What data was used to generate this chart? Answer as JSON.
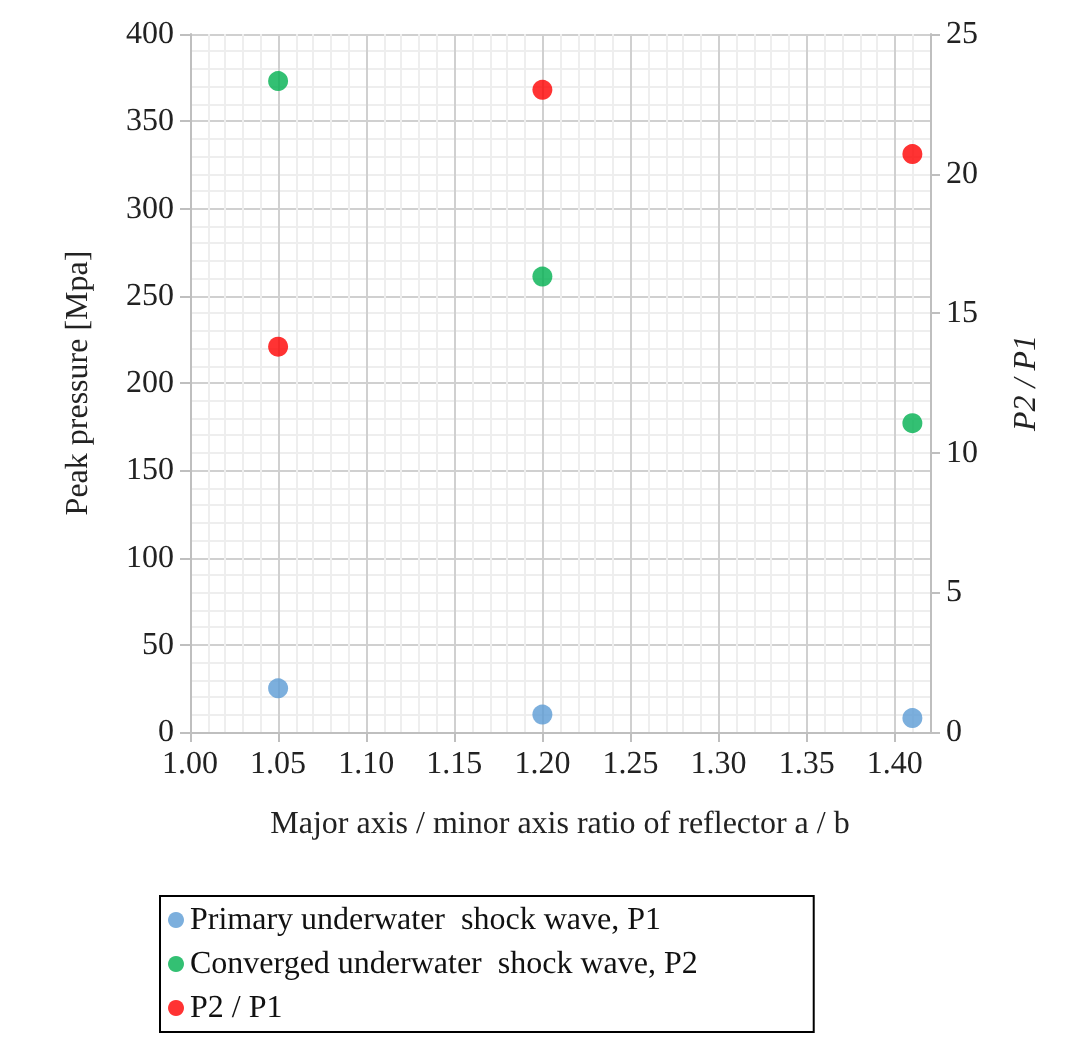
{
  "chart_data": {
    "type": "scatter",
    "xlabel": "Major axis / minor axis ratio of reflector a / b",
    "ylabel": "Peak pressure [Mpa]",
    "y2label": "P2 / P1",
    "x": [
      1.05,
      1.2,
      1.41
    ],
    "series": [
      {
        "name": "Primary underwater  shock wave, P1",
        "color": "#5b9bd5",
        "values": [
          25,
          10,
          8
        ]
      },
      {
        "name": "Converged underwater  shock wave, P2",
        "color": "#00b050",
        "values": [
          373,
          261,
          177
        ]
      },
      {
        "name": "P2 / P1",
        "color": "#ff0000",
        "axis": "y2",
        "values": [
          13.8,
          23.0,
          20.7
        ]
      }
    ],
    "xlim": [
      1.0,
      1.42
    ],
    "xticks": [
      {
        "value": 1.0,
        "label": "1.00"
      },
      {
        "value": 1.05,
        "label": "1.05"
      },
      {
        "value": 1.1,
        "label": "1.10"
      },
      {
        "value": 1.15,
        "label": "1.15"
      },
      {
        "value": 1.2,
        "label": "1.20"
      },
      {
        "value": 1.25,
        "label": "1.25"
      },
      {
        "value": 1.3,
        "label": "1.30"
      },
      {
        "value": 1.35,
        "label": "1.35"
      },
      {
        "value": 1.4,
        "label": "1.40"
      }
    ],
    "ylim": [
      0,
      400
    ],
    "yticks": [
      0,
      50,
      100,
      150,
      200,
      250,
      300,
      350,
      400
    ],
    "y2lim": [
      0,
      25
    ],
    "y2ticks": [
      0,
      5,
      10,
      15,
      20,
      25
    ],
    "grid": true,
    "legend": "bottom",
    "marker": "circle"
  }
}
